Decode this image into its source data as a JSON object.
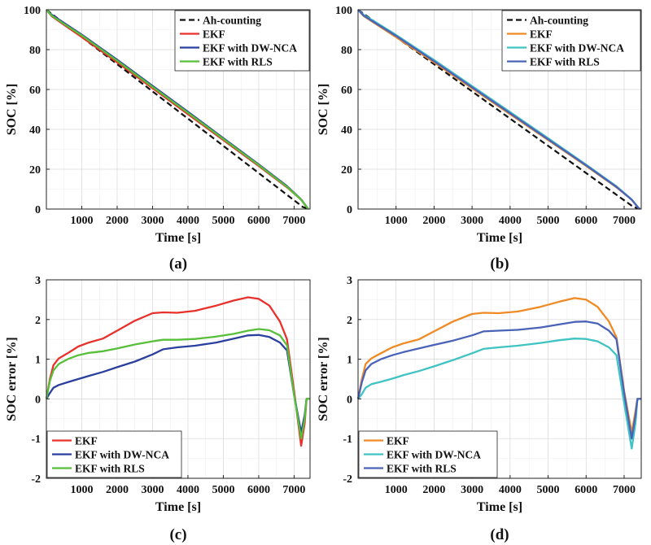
{
  "chart_data": [
    {
      "type": "line",
      "panel_label": "(a)",
      "title": "",
      "xlabel": "Time [s]",
      "ylabel": "SOC [%]",
      "xlim": [
        0,
        7450
      ],
      "ylim": [
        0,
        100
      ],
      "xticks": [
        1000,
        2000,
        3000,
        4000,
        5000,
        6000,
        7000
      ],
      "yticks": [
        0,
        20,
        40,
        60,
        80,
        100
      ],
      "grid": true,
      "legend": "top-right",
      "series": [
        {
          "name": "Ah-counting",
          "color": "#111111",
          "dash": "7,4",
          "x": [
            0,
            7250,
            7450
          ],
          "y": [
            100,
            1,
            0
          ]
        },
        {
          "name": "EKF",
          "color": "#e8312a",
          "x": [
            0,
            150,
            500,
            1000,
            2000,
            3000,
            4000,
            5000,
            6000,
            6800,
            7200,
            7400
          ],
          "y": [
            100,
            96.8,
            92.4,
            86.3,
            73.6,
            60.6,
            47.6,
            34.6,
            21.6,
            10.9,
            4.7,
            0
          ]
        },
        {
          "name": "EKF with DW-NCA",
          "color": "#2b3f9e",
          "x": [
            0,
            150,
            500,
            1000,
            2000,
            3000,
            4000,
            5000,
            6000,
            6800,
            7200,
            7400
          ],
          "y": [
            100,
            97.5,
            93.4,
            87.5,
            74.9,
            61.8,
            48.8,
            35.6,
            22.4,
            11.5,
            4.8,
            0
          ]
        },
        {
          "name": "EKF with RLS",
          "color": "#57bf3a",
          "x": [
            0,
            150,
            500,
            1000,
            2000,
            3000,
            4000,
            5000,
            6000,
            6800,
            7200,
            7400
          ],
          "y": [
            100,
            97.1,
            92.9,
            87.1,
            74.4,
            61.3,
            48.3,
            35.2,
            22.1,
            11.2,
            4.7,
            0
          ]
        }
      ]
    },
    {
      "type": "line",
      "panel_label": "(b)",
      "title": "",
      "xlabel": "Time [s]",
      "ylabel": "SOC [%]",
      "xlim": [
        0,
        7450
      ],
      "ylim": [
        0,
        100
      ],
      "xticks": [
        1000,
        2000,
        3000,
        4000,
        5000,
        6000,
        7000
      ],
      "yticks": [
        0,
        20,
        40,
        60,
        80,
        100
      ],
      "grid": true,
      "legend": "top-right",
      "series": [
        {
          "name": "Ah-counting",
          "color": "#111111",
          "dash": "7,4",
          "x": [
            0,
            7250,
            7450
          ],
          "y": [
            100,
            1,
            0
          ]
        },
        {
          "name": "EKF",
          "color": "#f08a24",
          "x": [
            0,
            150,
            500,
            1000,
            2000,
            3000,
            4000,
            5000,
            6000,
            6800,
            7200,
            7400
          ],
          "y": [
            100,
            96.8,
            92.4,
            86.3,
            73.6,
            60.6,
            47.6,
            34.6,
            21.6,
            10.9,
            4.7,
            0
          ]
        },
        {
          "name": "EKF with DW-NCA",
          "color": "#3fc3c3",
          "x": [
            0,
            150,
            500,
            1000,
            2000,
            3000,
            4000,
            5000,
            6000,
            6800,
            7200,
            7400
          ],
          "y": [
            100,
            97.4,
            93.3,
            87.4,
            74.8,
            61.7,
            48.7,
            35.5,
            22.3,
            11.4,
            4.8,
            0
          ]
        },
        {
          "name": "EKF with RLS",
          "color": "#4a63b8",
          "x": [
            0,
            150,
            500,
            1000,
            2000,
            3000,
            4000,
            5000,
            6000,
            6800,
            7200,
            7400
          ],
          "y": [
            100,
            97.0,
            92.8,
            86.9,
            74.2,
            61.1,
            48.1,
            35.0,
            21.9,
            11.1,
            4.7,
            0
          ]
        }
      ]
    },
    {
      "type": "line",
      "panel_label": "(c)",
      "title": "",
      "xlabel": "Time [s]",
      "ylabel": "SOC error [%]",
      "xlim": [
        0,
        7450
      ],
      "ylim": [
        -2,
        3
      ],
      "xticks": [
        1000,
        2000,
        3000,
        4000,
        5000,
        6000,
        7000
      ],
      "yticks": [
        -2,
        -1,
        0,
        1,
        2,
        3
      ],
      "grid": true,
      "legend": "bottom-left",
      "series": [
        {
          "name": "EKF",
          "color": "#e8312a",
          "x": [
            0,
            100,
            200,
            350,
            600,
            900,
            1200,
            1600,
            2000,
            2500,
            3000,
            3300,
            3700,
            4200,
            4800,
            5300,
            5700,
            6000,
            6300,
            6600,
            6800,
            7000,
            7200,
            7300,
            7350,
            7450
          ],
          "y": [
            0,
            0.5,
            0.85,
            1.02,
            1.15,
            1.32,
            1.42,
            1.52,
            1.72,
            1.97,
            2.16,
            2.18,
            2.17,
            2.22,
            2.35,
            2.48,
            2.56,
            2.52,
            2.35,
            1.95,
            1.5,
            0.2,
            -1.18,
            -0.6,
            0,
            0
          ]
        },
        {
          "name": "EKF with DW-NCA",
          "color": "#2b3f9e",
          "x": [
            0,
            100,
            200,
            350,
            600,
            900,
            1200,
            1600,
            2000,
            2500,
            3000,
            3300,
            3700,
            4200,
            4800,
            5300,
            5700,
            6000,
            6300,
            6600,
            6800,
            7000,
            7200,
            7300,
            7350,
            7450
          ],
          "y": [
            0,
            0.15,
            0.28,
            0.35,
            0.42,
            0.5,
            0.58,
            0.68,
            0.8,
            0.94,
            1.12,
            1.25,
            1.3,
            1.34,
            1.42,
            1.52,
            1.6,
            1.61,
            1.56,
            1.42,
            1.22,
            0.1,
            -0.85,
            -0.4,
            0,
            0
          ]
        },
        {
          "name": "EKF with RLS",
          "color": "#57bf3a",
          "x": [
            0,
            100,
            200,
            350,
            600,
            900,
            1200,
            1600,
            2000,
            2500,
            3000,
            3300,
            3700,
            4200,
            4800,
            5300,
            5700,
            6000,
            6300,
            6600,
            6800,
            7000,
            7200,
            7300,
            7350,
            7450
          ],
          "y": [
            0,
            0.45,
            0.72,
            0.88,
            1.0,
            1.1,
            1.16,
            1.2,
            1.27,
            1.37,
            1.45,
            1.49,
            1.49,
            1.51,
            1.57,
            1.64,
            1.72,
            1.76,
            1.73,
            1.6,
            1.35,
            0.1,
            -1.0,
            -0.5,
            0,
            0
          ]
        }
      ]
    },
    {
      "type": "line",
      "panel_label": "(d)",
      "title": "",
      "xlabel": "Time [s]",
      "ylabel": "SOC error [%]",
      "xlim": [
        0,
        7450
      ],
      "ylim": [
        -2,
        3
      ],
      "xticks": [
        1000,
        2000,
        3000,
        4000,
        5000,
        6000,
        7000
      ],
      "yticks": [
        -2,
        -1,
        0,
        1,
        2,
        3
      ],
      "grid": true,
      "legend": "bottom-left",
      "series": [
        {
          "name": "EKF",
          "color": "#f08a24",
          "x": [
            0,
            100,
            200,
            350,
            600,
            900,
            1200,
            1600,
            2000,
            2500,
            3000,
            3300,
            3700,
            4200,
            4800,
            5300,
            5700,
            6000,
            6300,
            6600,
            6800,
            7000,
            7200,
            7300,
            7350,
            7450
          ],
          "y": [
            0,
            0.5,
            0.88,
            1.02,
            1.15,
            1.3,
            1.4,
            1.5,
            1.7,
            1.95,
            2.14,
            2.17,
            2.16,
            2.2,
            2.32,
            2.45,
            2.54,
            2.5,
            2.32,
            1.95,
            1.55,
            0.2,
            -0.85,
            -0.3,
            0,
            0
          ]
        },
        {
          "name": "EKF with DW-NCA",
          "color": "#3fc3c3",
          "x": [
            0,
            100,
            200,
            350,
            600,
            900,
            1200,
            1600,
            2000,
            2500,
            3000,
            3300,
            3700,
            4200,
            4800,
            5300,
            5700,
            6000,
            6300,
            6600,
            6800,
            7000,
            7200,
            7300,
            7350,
            7450
          ],
          "y": [
            0,
            0.12,
            0.28,
            0.37,
            0.43,
            0.51,
            0.6,
            0.7,
            0.82,
            0.98,
            1.15,
            1.26,
            1.3,
            1.34,
            1.41,
            1.48,
            1.52,
            1.51,
            1.45,
            1.3,
            1.1,
            -0.1,
            -1.25,
            -0.6,
            0,
            0
          ]
        },
        {
          "name": "EKF with RLS",
          "color": "#4a63b8",
          "x": [
            0,
            100,
            200,
            350,
            600,
            900,
            1200,
            1600,
            2000,
            2500,
            3000,
            3300,
            3700,
            4200,
            4800,
            5300,
            5700,
            6000,
            6300,
            6600,
            6800,
            7000,
            7200,
            7300,
            7350,
            7450
          ],
          "y": [
            0,
            0.42,
            0.72,
            0.88,
            1.0,
            1.1,
            1.18,
            1.27,
            1.36,
            1.47,
            1.6,
            1.7,
            1.72,
            1.74,
            1.8,
            1.88,
            1.94,
            1.95,
            1.9,
            1.72,
            1.5,
            0.15,
            -1.0,
            -0.4,
            0,
            0
          ]
        }
      ]
    }
  ]
}
